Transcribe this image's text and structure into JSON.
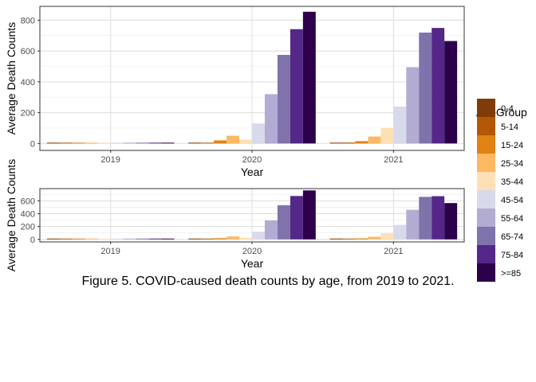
{
  "caption": "Figure 5. COVID-caused death counts by age, from 2019 to 2021.",
  "legend": {
    "title": "AgeGroup",
    "placement": "right",
    "entries": [
      {
        "label": "0-4",
        "color": "#7f3b08"
      },
      {
        "label": "5-14",
        "color": "#b35806"
      },
      {
        "label": "15-24",
        "color": "#e08214"
      },
      {
        "label": "25-34",
        "color": "#fdb863"
      },
      {
        "label": "35-44",
        "color": "#fee0b6"
      },
      {
        "label": "45-54",
        "color": "#d8daeb"
      },
      {
        "label": "55-64",
        "color": "#b2abd2"
      },
      {
        "label": "65-74",
        "color": "#8073ac"
      },
      {
        "label": "75-84",
        "color": "#542788"
      },
      {
        "label": ">=85",
        "color": "#2d004b"
      }
    ]
  },
  "chart_data": [
    {
      "type": "bar",
      "grid": true,
      "xlabel": "Year",
      "ylabel": "Average Death Counts",
      "categories": [
        "2019",
        "2020",
        "2021"
      ],
      "ylim": [
        -45,
        890
      ],
      "yticks": [
        0,
        200,
        400,
        600,
        800
      ],
      "series": [
        {
          "name": "0-4",
          "values": [
            1,
            2,
            3
          ]
        },
        {
          "name": "5-14",
          "values": [
            1,
            5,
            6
          ]
        },
        {
          "name": "15-24",
          "values": [
            1,
            20,
            15
          ]
        },
        {
          "name": "25-34",
          "values": [
            1,
            50,
            45
          ]
        },
        {
          "name": "35-44",
          "values": [
            1,
            25,
            100
          ]
        },
        {
          "name": "45-54",
          "values": [
            1,
            130,
            240
          ]
        },
        {
          "name": "55-64",
          "values": [
            1,
            320,
            495
          ]
        },
        {
          "name": "65-74",
          "values": [
            2,
            575,
            720
          ]
        },
        {
          "name": "75-84",
          "values": [
            2,
            742,
            750
          ]
        },
        {
          "name": ">=85",
          "values": [
            2,
            855,
            665
          ]
        }
      ]
    },
    {
      "type": "bar",
      "grid": true,
      "xlabel": "Year",
      "ylabel": "Average Death Counts",
      "categories": [
        "2019",
        "2020",
        "2021"
      ],
      "ylim": [
        -40,
        790
      ],
      "yticks": [
        0,
        200,
        400,
        600
      ],
      "series": [
        {
          "name": "0-4",
          "values": [
            1,
            2,
            3
          ]
        },
        {
          "name": "5-14",
          "values": [
            1,
            6,
            7
          ]
        },
        {
          "name": "15-24",
          "values": [
            1,
            18,
            15
          ]
        },
        {
          "name": "25-34",
          "values": [
            1,
            45,
            40
          ]
        },
        {
          "name": "35-44",
          "values": [
            1,
            25,
            95
          ]
        },
        {
          "name": "45-54",
          "values": [
            1,
            120,
            225
          ]
        },
        {
          "name": "55-64",
          "values": [
            1,
            295,
            460
          ]
        },
        {
          "name": "65-74",
          "values": [
            2,
            532,
            662
          ]
        },
        {
          "name": "75-84",
          "values": [
            2,
            675,
            672
          ]
        },
        {
          "name": ">=85",
          "values": [
            2,
            762,
            565
          ]
        }
      ]
    }
  ]
}
